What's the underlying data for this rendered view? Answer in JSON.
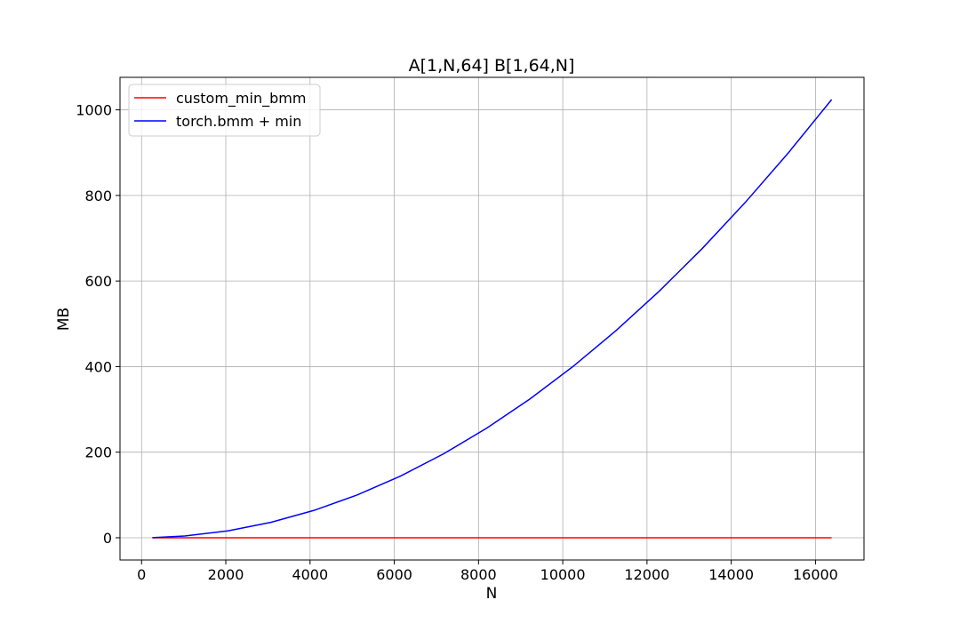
{
  "chart_data": {
    "type": "line",
    "title": "A[1,N,64] B[1,64,N]",
    "xlabel": "N",
    "ylabel": "MB",
    "xlim": [
      -512,
      17152
    ],
    "ylim": [
      -52,
      1076
    ],
    "xticks": [
      0,
      2000,
      4000,
      6000,
      8000,
      10000,
      12000,
      14000,
      16000
    ],
    "yticks": [
      0,
      200,
      400,
      600,
      800,
      1000
    ],
    "grid": true,
    "legend_position": "top-left",
    "series": [
      {
        "name": "custom_min_bmm",
        "color": "#ff0000",
        "x": [
          256,
          16384
        ],
        "y": [
          0,
          0
        ]
      },
      {
        "name": "torch.bmm + min",
        "color": "#0000ff",
        "x": [
          256,
          1024,
          2048,
          3072,
          4096,
          5120,
          6144,
          7168,
          8192,
          9216,
          10240,
          11264,
          12288,
          13312,
          14336,
          15360,
          16384
        ],
        "y": [
          0.25,
          4,
          16,
          36,
          64,
          100,
          144,
          196,
          256,
          324,
          400,
          484,
          576,
          676,
          784,
          900,
          1024
        ]
      }
    ]
  }
}
